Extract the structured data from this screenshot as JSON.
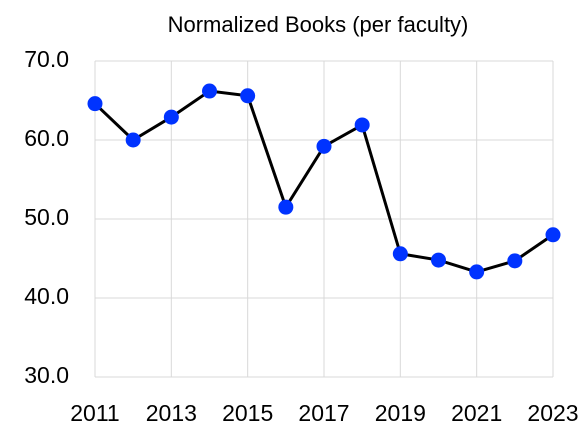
{
  "chart_data": {
    "type": "line",
    "title": "Normalized Books (per faculty)",
    "x": [
      2011,
      2012,
      2013,
      2014,
      2015,
      2016,
      2017,
      2018,
      2019,
      2020,
      2021,
      2022,
      2023
    ],
    "series": [
      {
        "name": "Normalized Books",
        "color": "#0033ff",
        "line_color": "#000000",
        "values": [
          64.6,
          60.0,
          62.9,
          66.2,
          65.6,
          51.5,
          59.2,
          61.9,
          45.6,
          44.8,
          43.3,
          44.7,
          48.0
        ]
      }
    ],
    "xlim": [
      2011,
      2023
    ],
    "xticks": [
      2011,
      2013,
      2015,
      2017,
      2019,
      2021,
      2023
    ],
    "ylim": [
      30,
      70
    ],
    "yticks": [
      {
        "value": 30,
        "label": "30.0"
      },
      {
        "value": 40,
        "label": "40.0"
      },
      {
        "value": 50,
        "label": "50.0"
      },
      {
        "value": 60,
        "label": "60.0"
      },
      {
        "value": 70,
        "label": "70.0"
      }
    ],
    "grid": true,
    "legend": false
  }
}
